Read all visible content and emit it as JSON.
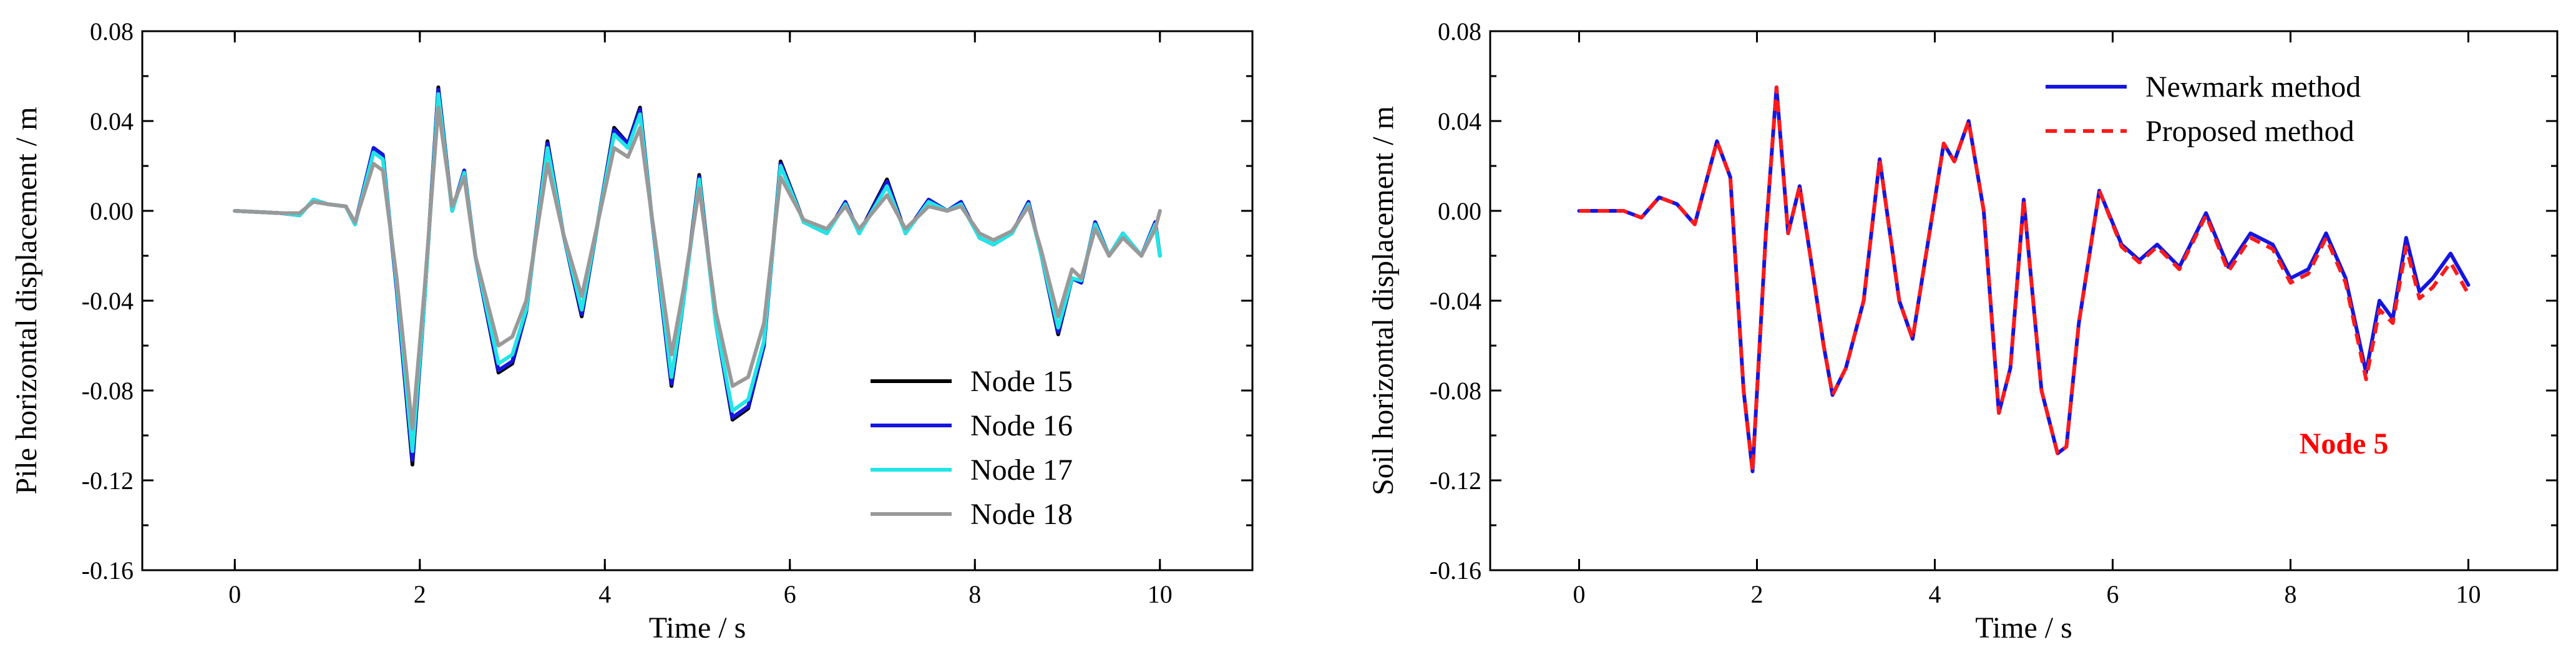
{
  "chart_data": [
    {
      "type": "line",
      "xlabel": "Time / s",
      "ylabel": "Pile horizontal displacement / m",
      "xlim": [
        -1,
        11
      ],
      "ylim": [
        -0.16,
        0.08
      ],
      "xticks": [
        0,
        2,
        4,
        6,
        8,
        10
      ],
      "xtick_labels": [
        "0",
        "2",
        "4",
        "6",
        "8",
        "10"
      ],
      "yticks": [
        -0.16,
        -0.12,
        -0.08,
        -0.04,
        0.0,
        0.04,
        0.08
      ],
      "ytick_labels": [
        "-0.16",
        "-0.12",
        "-0.08",
        "-0.04",
        "0.00",
        "0.04",
        "0.08"
      ],
      "grid": false,
      "legend_position": "bottom-right",
      "series": [
        {
          "name": "Node 15",
          "color": "#000000",
          "dash": false,
          "x": [
            0,
            0.5,
            0.7,
            0.85,
            1.0,
            1.2,
            1.3,
            1.5,
            1.6,
            1.75,
            1.92,
            2.05,
            2.2,
            2.35,
            2.48,
            2.6,
            2.85,
            3.0,
            3.15,
            3.38,
            3.55,
            3.75,
            4.1,
            4.25,
            4.38,
            4.5,
            4.72,
            4.85,
            5.02,
            5.2,
            5.38,
            5.55,
            5.72,
            5.9,
            6.15,
            6.4,
            6.6,
            6.75,
            7.05,
            7.25,
            7.5,
            7.7,
            7.85,
            8.05,
            8.2,
            8.4,
            8.58,
            8.72,
            8.9,
            9.05,
            9.15,
            9.3,
            9.45,
            9.6,
            9.8,
            9.95,
            10.0
          ],
          "y": [
            0.0,
            -0.001,
            -0.002,
            0.005,
            0.003,
            0.002,
            -0.006,
            0.028,
            0.025,
            -0.035,
            -0.113,
            -0.04,
            0.055,
            0.0,
            0.018,
            -0.02,
            -0.072,
            -0.068,
            -0.045,
            0.031,
            -0.01,
            -0.047,
            0.037,
            0.03,
            0.046,
            0.0,
            -0.078,
            -0.04,
            0.016,
            -0.05,
            -0.093,
            -0.088,
            -0.06,
            0.022,
            -0.005,
            -0.01,
            0.004,
            -0.01,
            0.014,
            -0.01,
            0.005,
            0.0,
            0.004,
            -0.012,
            -0.015,
            -0.01,
            0.004,
            -0.02,
            -0.055,
            -0.03,
            -0.032,
            -0.005,
            -0.02,
            -0.01,
            -0.02,
            -0.005,
            -0.02
          ]
        },
        {
          "name": "Node 16",
          "color": "#1515e0",
          "dash": false,
          "x": [
            0,
            0.5,
            0.7,
            0.85,
            1.0,
            1.2,
            1.3,
            1.5,
            1.6,
            1.75,
            1.92,
            2.05,
            2.2,
            2.35,
            2.48,
            2.6,
            2.85,
            3.0,
            3.15,
            3.38,
            3.55,
            3.75,
            4.1,
            4.25,
            4.38,
            4.5,
            4.72,
            4.85,
            5.02,
            5.2,
            5.38,
            5.55,
            5.72,
            5.9,
            6.15,
            6.4,
            6.6,
            6.75,
            7.05,
            7.25,
            7.5,
            7.7,
            7.85,
            8.05,
            8.2,
            8.4,
            8.58,
            8.72,
            8.9,
            9.05,
            9.15,
            9.3,
            9.45,
            9.6,
            9.8,
            9.95,
            10.0
          ],
          "y": [
            0.0,
            -0.001,
            -0.002,
            0.005,
            0.003,
            0.002,
            -0.006,
            0.028,
            0.025,
            -0.035,
            -0.111,
            -0.04,
            0.054,
            0.0,
            0.018,
            -0.02,
            -0.071,
            -0.067,
            -0.045,
            0.03,
            -0.01,
            -0.046,
            0.036,
            0.03,
            0.045,
            0.0,
            -0.077,
            -0.04,
            0.015,
            -0.05,
            -0.092,
            -0.087,
            -0.06,
            0.021,
            -0.005,
            -0.01,
            0.004,
            -0.01,
            0.013,
            -0.01,
            0.005,
            0.0,
            0.004,
            -0.012,
            -0.015,
            -0.01,
            0.004,
            -0.02,
            -0.054,
            -0.03,
            -0.032,
            -0.005,
            -0.02,
            -0.01,
            -0.02,
            -0.005,
            -0.02
          ]
        },
        {
          "name": "Node 17",
          "color": "#22e5e5",
          "dash": false,
          "x": [
            0,
            0.5,
            0.7,
            0.85,
            1.0,
            1.2,
            1.3,
            1.5,
            1.6,
            1.75,
            1.92,
            2.05,
            2.2,
            2.35,
            2.48,
            2.6,
            2.85,
            3.0,
            3.15,
            3.38,
            3.55,
            3.75,
            4.1,
            4.25,
            4.38,
            4.5,
            4.72,
            4.85,
            5.02,
            5.2,
            5.38,
            5.55,
            5.72,
            5.9,
            6.15,
            6.4,
            6.6,
            6.75,
            7.05,
            7.25,
            7.5,
            7.7,
            7.85,
            8.05,
            8.2,
            8.4,
            8.58,
            8.72,
            8.9,
            9.05,
            9.15,
            9.3,
            9.45,
            9.6,
            9.8,
            9.95,
            10.0
          ],
          "y": [
            0.0,
            -0.001,
            -0.002,
            0.005,
            0.003,
            0.002,
            -0.006,
            0.026,
            0.023,
            -0.033,
            -0.107,
            -0.04,
            0.052,
            0.0,
            0.017,
            -0.02,
            -0.068,
            -0.064,
            -0.044,
            0.028,
            -0.01,
            -0.044,
            0.034,
            0.028,
            0.043,
            0.0,
            -0.074,
            -0.04,
            0.014,
            -0.05,
            -0.089,
            -0.084,
            -0.058,
            0.02,
            -0.005,
            -0.01,
            0.003,
            -0.01,
            0.011,
            -0.01,
            0.004,
            0.0,
            0.003,
            -0.012,
            -0.015,
            -0.01,
            0.003,
            -0.02,
            -0.052,
            -0.03,
            -0.031,
            -0.006,
            -0.02,
            -0.01,
            -0.02,
            -0.006,
            -0.02
          ]
        },
        {
          "name": "Node 18",
          "color": "#999999",
          "dash": false,
          "x": [
            0,
            0.5,
            0.7,
            0.85,
            1.0,
            1.2,
            1.3,
            1.5,
            1.6,
            1.75,
            1.92,
            2.05,
            2.2,
            2.35,
            2.48,
            2.6,
            2.85,
            3.0,
            3.15,
            3.38,
            3.55,
            3.75,
            4.1,
            4.25,
            4.38,
            4.5,
            4.72,
            4.85,
            5.02,
            5.2,
            5.38,
            5.55,
            5.72,
            5.9,
            6.15,
            6.4,
            6.6,
            6.75,
            7.05,
            7.25,
            7.5,
            7.7,
            7.85,
            8.05,
            8.2,
            8.4,
            8.58,
            8.72,
            8.9,
            9.05,
            9.15,
            9.3,
            9.45,
            9.6,
            9.8,
            9.95,
            10.0
          ],
          "y": [
            0.0,
            -0.001,
            -0.001,
            0.004,
            0.003,
            0.002,
            -0.005,
            0.021,
            0.018,
            -0.03,
            -0.097,
            -0.035,
            0.046,
            0.002,
            0.015,
            -0.02,
            -0.06,
            -0.056,
            -0.04,
            0.021,
            -0.01,
            -0.038,
            0.028,
            0.024,
            0.037,
            0.0,
            -0.064,
            -0.035,
            0.01,
            -0.045,
            -0.078,
            -0.074,
            -0.05,
            0.015,
            -0.004,
            -0.008,
            0.002,
            -0.008,
            0.007,
            -0.008,
            0.002,
            0.0,
            0.002,
            -0.01,
            -0.013,
            -0.009,
            0.002,
            -0.018,
            -0.047,
            -0.026,
            -0.03,
            -0.008,
            -0.02,
            -0.012,
            -0.02,
            -0.008,
            0.0
          ]
        }
      ]
    },
    {
      "type": "line",
      "xlabel": "Time / s",
      "ylabel": "Soil horizontal displacement / m",
      "xlim": [
        -1,
        11
      ],
      "ylim": [
        -0.16,
        0.08
      ],
      "xticks": [
        0,
        2,
        4,
        6,
        8,
        10
      ],
      "xtick_labels": [
        "0",
        "2",
        "4",
        "6",
        "8",
        "10"
      ],
      "yticks": [
        -0.16,
        -0.12,
        -0.08,
        -0.04,
        0.0,
        0.04,
        0.08
      ],
      "ytick_labels": [
        "-0.16",
        "-0.12",
        "-0.08",
        "-0.04",
        "0.00",
        "0.04",
        "0.08"
      ],
      "grid": false,
      "legend_position": "top-center",
      "annotation": {
        "text": "Node 5",
        "color": "#ff0000",
        "x": 8.6,
        "y": -0.108
      },
      "series": [
        {
          "name": "Newmark method",
          "color": "#1515e0",
          "dash": false,
          "x": [
            0,
            0.5,
            0.7,
            0.9,
            1.1,
            1.3,
            1.55,
            1.7,
            1.85,
            1.95,
            2.1,
            2.22,
            2.35,
            2.48,
            2.6,
            2.75,
            2.85,
            3.0,
            3.2,
            3.38,
            3.6,
            3.75,
            4.1,
            4.22,
            4.38,
            4.55,
            4.72,
            4.85,
            5.0,
            5.2,
            5.38,
            5.48,
            5.62,
            5.85,
            6.1,
            6.3,
            6.5,
            6.75,
            7.05,
            7.3,
            7.55,
            7.8,
            8.0,
            8.2,
            8.4,
            8.62,
            8.85,
            9.0,
            9.15,
            9.3,
            9.45,
            9.6,
            9.8,
            10.0
          ],
          "y": [
            0.0,
            0.0,
            -0.003,
            0.006,
            0.003,
            -0.006,
            0.031,
            0.015,
            -0.08,
            -0.116,
            -0.01,
            0.055,
            -0.01,
            0.011,
            -0.02,
            -0.06,
            -0.082,
            -0.07,
            -0.04,
            0.023,
            -0.04,
            -0.057,
            0.03,
            0.022,
            0.04,
            0.0,
            -0.09,
            -0.07,
            0.005,
            -0.08,
            -0.108,
            -0.105,
            -0.05,
            0.009,
            -0.015,
            -0.022,
            -0.015,
            -0.025,
            -0.001,
            -0.025,
            -0.01,
            -0.015,
            -0.03,
            -0.026,
            -0.01,
            -0.03,
            -0.072,
            -0.04,
            -0.048,
            -0.012,
            -0.036,
            -0.03,
            -0.019,
            -0.033
          ]
        },
        {
          "name": "Proposed method",
          "color": "#ff1a1a",
          "dash": true,
          "x": [
            0,
            0.5,
            0.7,
            0.9,
            1.1,
            1.3,
            1.55,
            1.7,
            1.85,
            1.95,
            2.1,
            2.22,
            2.35,
            2.48,
            2.6,
            2.75,
            2.85,
            3.0,
            3.2,
            3.38,
            3.6,
            3.75,
            4.1,
            4.22,
            4.38,
            4.55,
            4.72,
            4.85,
            5.0,
            5.2,
            5.38,
            5.48,
            5.62,
            5.85,
            6.1,
            6.3,
            6.5,
            6.75,
            7.05,
            7.3,
            7.55,
            7.8,
            8.0,
            8.2,
            8.4,
            8.62,
            8.85,
            9.0,
            9.15,
            9.3,
            9.45,
            9.6,
            9.8,
            10.0
          ],
          "y": [
            0.0,
            0.0,
            -0.003,
            0.006,
            0.003,
            -0.006,
            0.031,
            0.015,
            -0.08,
            -0.116,
            -0.01,
            0.055,
            -0.01,
            0.011,
            -0.02,
            -0.06,
            -0.082,
            -0.07,
            -0.04,
            0.023,
            -0.04,
            -0.057,
            0.03,
            0.022,
            0.04,
            0.0,
            -0.09,
            -0.07,
            0.005,
            -0.08,
            -0.108,
            -0.105,
            -0.05,
            0.009,
            -0.016,
            -0.023,
            -0.016,
            -0.026,
            -0.002,
            -0.027,
            -0.012,
            -0.017,
            -0.032,
            -0.028,
            -0.012,
            -0.032,
            -0.075,
            -0.044,
            -0.05,
            -0.016,
            -0.039,
            -0.034,
            -0.023,
            -0.037
          ]
        }
      ]
    }
  ]
}
